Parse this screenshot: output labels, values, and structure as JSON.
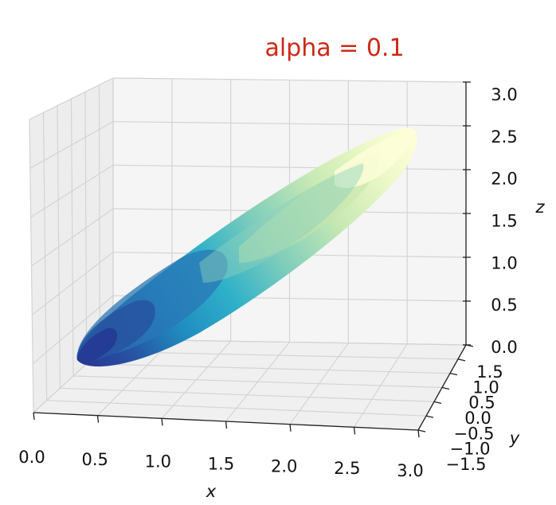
{
  "chart_data": {
    "type": "surface3d",
    "title": "alpha = 0.1",
    "xlabel": "x",
    "ylabel": "y",
    "zlabel": "z",
    "xlim": [
      0,
      3
    ],
    "ylim": [
      -1.5,
      1.5
    ],
    "zlim": [
      0,
      3
    ],
    "x_ticks": [
      "0.0",
      "0.5",
      "1.0",
      "1.5",
      "2.0",
      "2.5",
      "3.0"
    ],
    "y_ticks": [
      "−1.5",
      "−1.0",
      "−0.5",
      "0.0",
      "0.5",
      "1.0",
      "1.5"
    ],
    "z_ticks": [
      "0.0",
      "0.5",
      "1.0",
      "1.5",
      "2.0",
      "2.5",
      "3.0"
    ],
    "colormap": "YlGnBu_r",
    "grid": true,
    "surface": {
      "shape": "ellipsoid",
      "axis_start": [
        0.0,
        0.0,
        0.0
      ],
      "axis_end": [
        3.0,
        0.0,
        3.0
      ],
      "color_low": "#283593",
      "color_high": "#ffffd9"
    },
    "colors": {
      "title": "#cc2a17",
      "pane": "#f2f2f2",
      "grid": "#d0d0d0"
    }
  }
}
